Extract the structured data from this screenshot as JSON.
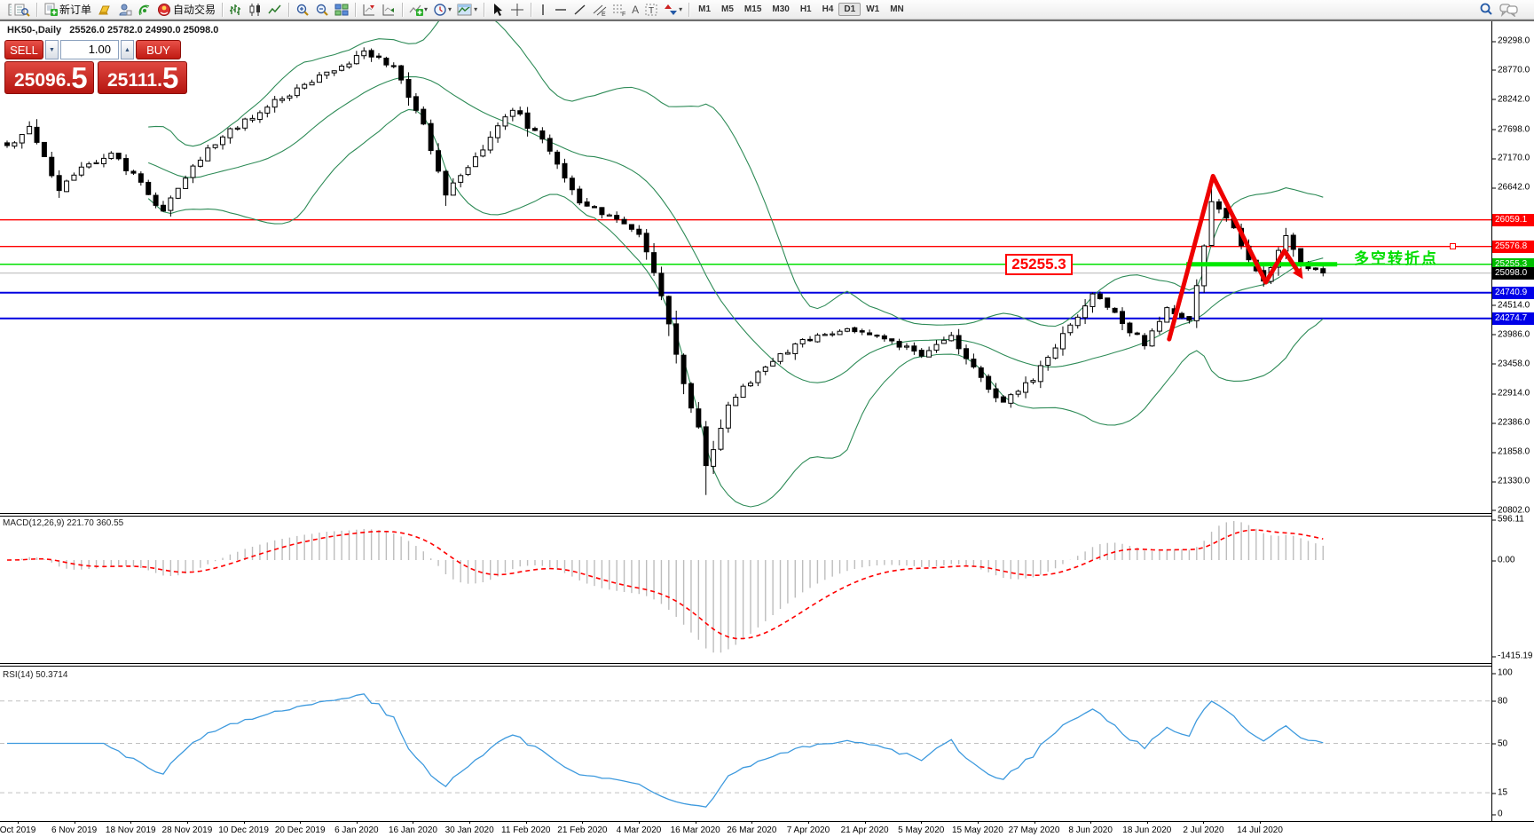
{
  "toolbar": {
    "new_order_label": "新订单",
    "auto_trading_label": "自动交易",
    "timeframes": [
      "M1",
      "M5",
      "M15",
      "M30",
      "H1",
      "H4",
      "D1",
      "W1",
      "MN"
    ],
    "active_timeframe": "D1",
    "drawing_tools": {
      "text_a": "A",
      "label_t": "T"
    }
  },
  "chart_header": {
    "symbol_period": "HK50-,Daily",
    "ohlc_line": "25526.0 25782.0 24990.0 25098.0"
  },
  "trade_panel": {
    "sell_label": "SELL",
    "buy_label": "BUY",
    "volume": "1.00",
    "sell_price_main": "25096",
    "sell_price_point": "5",
    "buy_price_main": "25111",
    "buy_price_point": "5"
  },
  "annotations": {
    "pivot_price": "25255.3",
    "pivot_text": "多空转折点"
  },
  "price_axis": {
    "ticks": [
      "29298.0",
      "28770.0",
      "28242.0",
      "27698.0",
      "27170.0",
      "26642.0",
      "24514.0",
      "23986.0",
      "23458.0",
      "22914.0",
      "22386.0",
      "21858.0",
      "21330.0",
      "20802.0"
    ],
    "badges": [
      {
        "text": "26059.1",
        "value": 26059.1,
        "bg": "#FF0000"
      },
      {
        "text": "25576.8",
        "value": 25576.8,
        "bg": "#FF0000"
      },
      {
        "text": "25255.3",
        "value": 25255.3,
        "bg": "#00BE00"
      },
      {
        "text": "25098.0",
        "value": 25098.0,
        "bg": "#000000"
      },
      {
        "text": "24740.9",
        "value": 24740.9,
        "bg": "#0000E8"
      },
      {
        "text": "24274.7",
        "value": 24274.7,
        "bg": "#0000E8"
      }
    ]
  },
  "macd_panel": {
    "label": "MACD(12,26,9) 221.70 360.55",
    "axis": [
      {
        "text": "596.11",
        "value": 596.11
      },
      {
        "text": "0.00",
        "value": 0
      },
      {
        "text": "-1415.19",
        "value": -1415.19
      }
    ]
  },
  "rsi_panel": {
    "label": "RSI(14) 50.3714",
    "axis": [
      {
        "text": "100",
        "value": 100
      },
      {
        "text": "80",
        "value": 80
      },
      {
        "text": "50",
        "value": 50
      },
      {
        "text": "15",
        "value": 15
      },
      {
        "text": "0",
        "value": 0
      }
    ],
    "levels": [
      80,
      50,
      15
    ]
  },
  "time_axis": {
    "labels": [
      "Oct 2019",
      "6 Nov 2019",
      "18 Nov 2019",
      "28 Nov 2019",
      "10 Dec 2019",
      "20 Dec 2019",
      "6 Jan 2020",
      "16 Jan 2020",
      "30 Jan 2020",
      "11 Feb 2020",
      "21 Feb 2020",
      "4 Mar 2020",
      "16 Mar 2020",
      "26 Mar 2020",
      "7 Apr 2020",
      "21 Apr 2020",
      "5 May 2020",
      "15 May 2020",
      "27 May 2020",
      "8 Jun 2020",
      "18 Jun 2020",
      "2 Jul 2020",
      "14 Jul 2020"
    ]
  },
  "chart_data": {
    "type": "candlestick",
    "symbol": "HK50",
    "period": "Daily",
    "display_ohlc": {
      "open": 25526.0,
      "high": 25782.0,
      "low": 24990.0,
      "close": 25098.0
    },
    "bid": 25096.5,
    "ask": 25111.5,
    "bars": 178,
    "price_ylim": [
      20754,
      29651
    ],
    "close_anchors": [
      [
        0,
        27400
      ],
      [
        3,
        27750
      ],
      [
        7,
        26600
      ],
      [
        10,
        27000
      ],
      [
        14,
        27250
      ],
      [
        18,
        26750
      ],
      [
        21,
        26200
      ],
      [
        25,
        27050
      ],
      [
        30,
        27700
      ],
      [
        35,
        28100
      ],
      [
        40,
        28500
      ],
      [
        45,
        28850
      ],
      [
        48,
        29100
      ],
      [
        52,
        28850
      ],
      [
        56,
        27800
      ],
      [
        59,
        26500
      ],
      [
        63,
        27200
      ],
      [
        68,
        28050
      ],
      [
        72,
        27500
      ],
      [
        77,
        26350
      ],
      [
        81,
        26150
      ],
      [
        85,
        25800
      ],
      [
        88,
        24700
      ],
      [
        91,
        23100
      ],
      [
        93,
        22300
      ],
      [
        94,
        21600
      ],
      [
        95,
        21900
      ],
      [
        97,
        22700
      ],
      [
        101,
        23300
      ],
      [
        106,
        23800
      ],
      [
        112,
        24050
      ],
      [
        118,
        23900
      ],
      [
        123,
        23600
      ],
      [
        127,
        23950
      ],
      [
        131,
        23200
      ],
      [
        134,
        22750
      ],
      [
        138,
        23150
      ],
      [
        142,
        24000
      ],
      [
        146,
        24700
      ],
      [
        150,
        24200
      ],
      [
        153,
        23800
      ],
      [
        156,
        24450
      ],
      [
        159,
        24250
      ],
      [
        161,
        25600
      ],
      [
        162,
        26400
      ],
      [
        164,
        26100
      ],
      [
        166,
        25600
      ],
      [
        168,
        25150
      ],
      [
        169,
        24950
      ],
      [
        171,
        25500
      ],
      [
        172,
        25780
      ],
      [
        174,
        25300
      ],
      [
        176,
        25150
      ],
      [
        177,
        25098
      ]
    ],
    "extremes": {
      "48": {
        "high": 29180
      },
      "94": {
        "low": 21080
      },
      "162": {
        "high": 26782
      },
      "169": {
        "low": 24850
      }
    },
    "hlines": [
      {
        "value": 26059.1,
        "color": "#FF0000",
        "width": 1.4
      },
      {
        "value": 25576.8,
        "color": "#FF0000",
        "width": 1.4
      },
      {
        "value": 25255.3,
        "color": "#00E000",
        "width": 1.5
      },
      {
        "value": 25096.5,
        "color": "#C4C4C4",
        "width": 1.2
      },
      {
        "value": 24740.9,
        "color": "#0000E0",
        "width": 2
      },
      {
        "value": 24274.7,
        "color": "#0000E0",
        "width": 2
      }
    ],
    "pivot_segment": {
      "value": 25255.3,
      "bar_start": 158.6,
      "bar_end": 178.9,
      "color": "#00E800",
      "width": 5
    },
    "zigzag": {
      "color": "#EE0000",
      "width": 5,
      "points": [
        [
          156.3,
          23900
        ],
        [
          162.2,
          26850
        ],
        [
          169.3,
          24930
        ],
        [
          171.8,
          25500
        ],
        [
          173.5,
          25150
        ]
      ]
    },
    "indicators": {
      "bollinger": {
        "period": 20,
        "deviation": 2,
        "color": "#2E8B57"
      },
      "macd": {
        "fast": 12,
        "slow": 26,
        "signal": 9,
        "value_main": 221.7,
        "value_signal": 360.55,
        "hist_color": "#BDBDBD",
        "signal_color": "#FF0000"
      },
      "rsi": {
        "period": 14,
        "value": 50.3714,
        "color": "#3E9ADE"
      }
    }
  }
}
